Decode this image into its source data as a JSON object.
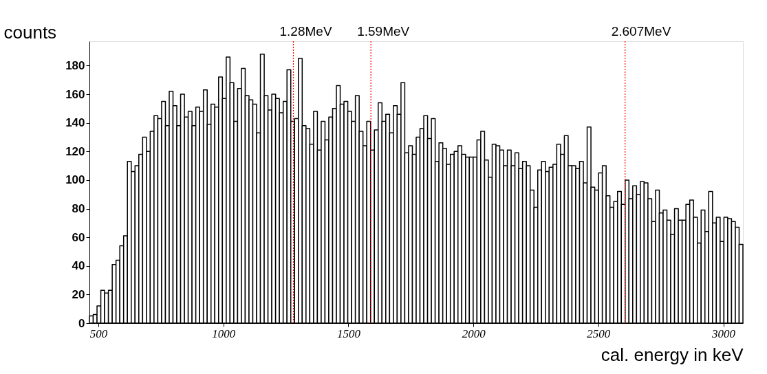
{
  "chart_data": {
    "type": "histogram",
    "xlabel": "cal. energy in keV",
    "ylabel": "counts",
    "bins": [
      464,
      479.2,
      494.4,
      509.6,
      524.8,
      540,
      555.2,
      570.4,
      585.6,
      600.8,
      616,
      631.2,
      646.4,
      661.6,
      676.8,
      692,
      707.2,
      722.4,
      737.6,
      752.8,
      768,
      783.2,
      798.4,
      813.6,
      828.8,
      844,
      859.2,
      874.4,
      889.6,
      904.8,
      920,
      935.2,
      950.4,
      965.6,
      980.8,
      996,
      1011.2,
      1026.4,
      1041.6,
      1056.8,
      1072,
      1087.2,
      1102.4,
      1117.6,
      1132.8,
      1148,
      1163.2,
      1178.4,
      1193.6,
      1208.8,
      1224,
      1239.2,
      1254.4,
      1269.6,
      1284.8,
      1300,
      1315.2,
      1330.4,
      1345.6,
      1360.8,
      1376,
      1391.2,
      1406.4,
      1421.6,
      1436.8,
      1452,
      1467.2,
      1482.4,
      1497.6,
      1512.8,
      1528,
      1543.2,
      1558.4,
      1573.6,
      1588.8,
      1604,
      1619.2,
      1634.4,
      1649.6,
      1664.8,
      1680,
      1695.2,
      1710.4,
      1725.6,
      1740.8,
      1756,
      1771.2,
      1786.4,
      1801.6,
      1816.8,
      1832,
      1847.2,
      1862.4,
      1877.6,
      1892.8,
      1908,
      1923.2,
      1938.4,
      1953.6,
      1968.8,
      1984,
      1999.2,
      2014.4,
      2029.6,
      2044.8,
      2060,
      2075.2,
      2090.4,
      2105.6,
      2120.8,
      2136,
      2151.2,
      2166.4,
      2181.6,
      2196.8,
      2212,
      2227.2,
      2242.4,
      2257.6,
      2272.8,
      2288,
      2303.2,
      2318.4,
      2333.6,
      2348.8,
      2364,
      2379.2,
      2394.4,
      2409.6,
      2424.8,
      2440,
      2455.2,
      2470.4,
      2485.6,
      2500.8,
      2516,
      2531.2,
      2546.4,
      2561.6,
      2576.8,
      2592,
      2607.2,
      2622.4,
      2637.6,
      2652.8,
      2668,
      2683.2,
      2698.4,
      2713.6,
      2728.8,
      2744,
      2759.2,
      2774.4,
      2789.6,
      2804.8,
      2820,
      2835.2,
      2850.4,
      2865.6,
      2880.8,
      2896,
      2911.2,
      2926.4,
      2941.6,
      2956.8,
      2972,
      2987.2,
      3002.4,
      3017.6,
      3032.8,
      3048,
      3063.2,
      3078.4
    ],
    "values": [
      5,
      6,
      12,
      23,
      21,
      23,
      41,
      44,
      54,
      61,
      113,
      106,
      110,
      118,
      130,
      120,
      134,
      145,
      143,
      155,
      138,
      162,
      152,
      138,
      160,
      144,
      148,
      138,
      151,
      148,
      163,
      139,
      153,
      151,
      172,
      157,
      186,
      168,
      141,
      164,
      178,
      159,
      156,
      153,
      133,
      188,
      159,
      149,
      160,
      157,
      147,
      155,
      177,
      141,
      143,
      185,
      138,
      136,
      125,
      148,
      121,
      141,
      128,
      144,
      150,
      166,
      153,
      155,
      148,
      141,
      159,
      134,
      124,
      141,
      121,
      135,
      154,
      141,
      146,
      133,
      152,
      146,
      168,
      119,
      124,
      118,
      130,
      136,
      145,
      129,
      143,
      113,
      126,
      122,
      111,
      118,
      120,
      124,
      118,
      116,
      116,
      116,
      128,
      134,
      114,
      102,
      125,
      124,
      121,
      110,
      121,
      110,
      119,
      108,
      113,
      110,
      93,
      81,
      107,
      113,
      106,
      109,
      111,
      125,
      118,
      131,
      110,
      110,
      108,
      113,
      98,
      137,
      95,
      93,
      105,
      110,
      89,
      81,
      85,
      92,
      83,
      100,
      87,
      96,
      90,
      99,
      98,
      87,
      71,
      93,
      77,
      79,
      72,
      62,
      80,
      72,
      72,
      83,
      86,
      74,
      56,
      79,
      64,
      92,
      70,
      74,
      57,
      74,
      73,
      71,
      67,
      55
    ],
    "color": "#000000",
    "xlim": [
      464,
      3078.4
    ],
    "xticks": [
      500,
      1000,
      1500,
      2000,
      2500,
      3000
    ],
    "ylim": [
      0,
      197
    ],
    "yticks": [
      0,
      20,
      40,
      60,
      80,
      100,
      120,
      140,
      160,
      180
    ],
    "ref_lines": [
      {
        "axis": "x",
        "value": 1280,
        "label": "1.28MeV",
        "color": "#ff0000",
        "line_style": "dotted"
      },
      {
        "axis": "x",
        "value": 1590,
        "label": "1.59MeV",
        "color": "#ff0000",
        "line_style": "dotted"
      },
      {
        "axis": "x",
        "value": 2607,
        "label": "2.607MeV",
        "color": "#ff0000",
        "line_style": "dotted"
      }
    ],
    "grid": false
  }
}
